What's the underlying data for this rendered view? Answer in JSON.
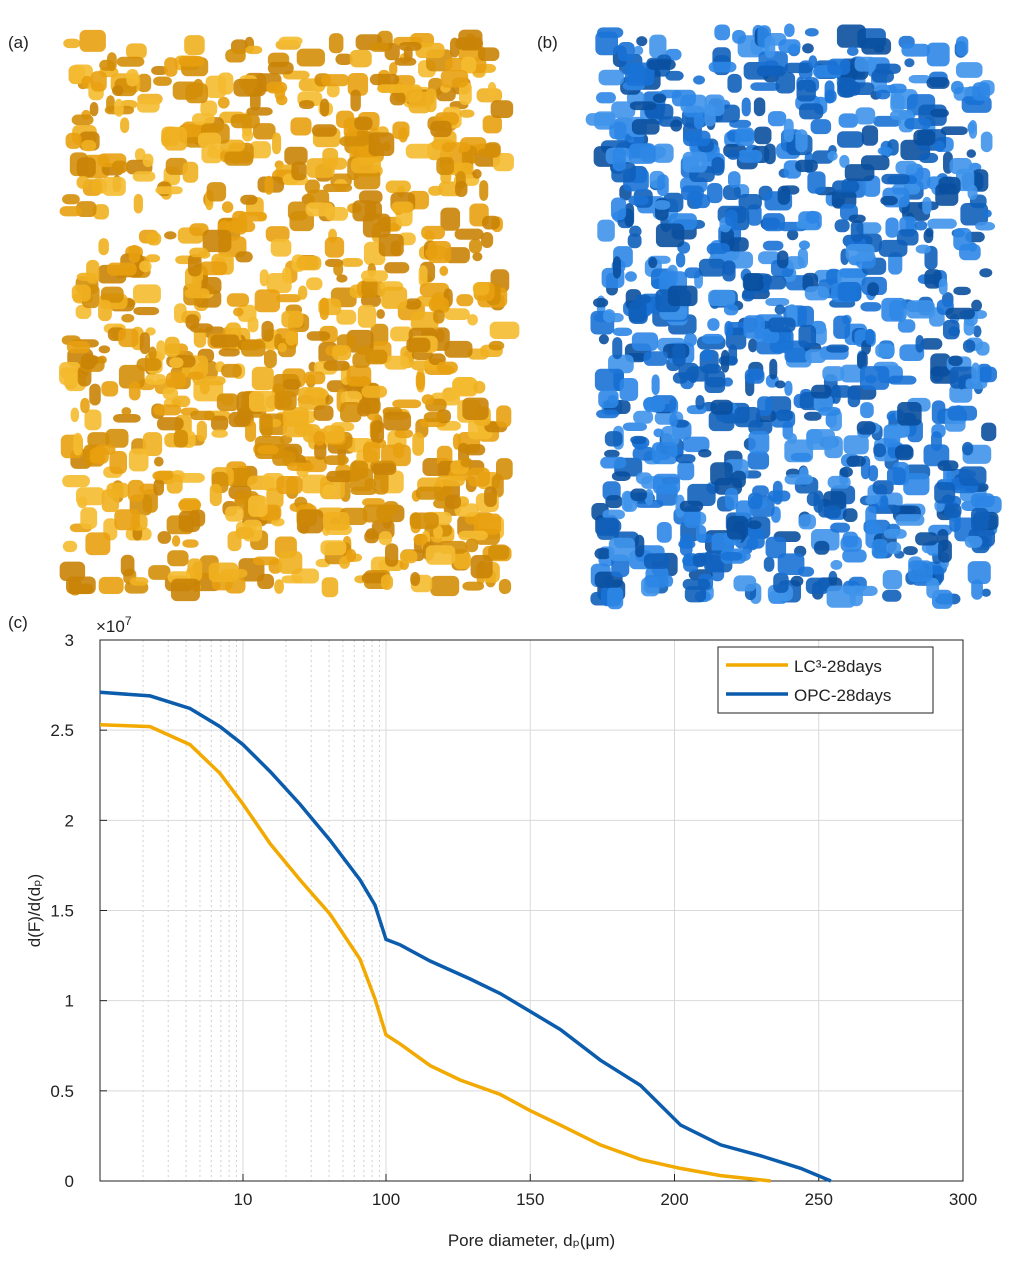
{
  "panel_labels": [
    "(a)",
    "(b)",
    "(c)"
  ],
  "chart_data": {
    "type": "line",
    "xlabel": "Pore diameter, dₚ(μm)",
    "ylabel": "d(F)/d(dₚ)",
    "y_scale_label": {
      "base": "×10",
      "exponent": "7"
    },
    "xscale": {
      "type": "log",
      "until": 100,
      "then": "linear"
    },
    "xlim": [
      1,
      300
    ],
    "xticks": [
      10,
      100,
      150,
      200,
      250,
      300
    ],
    "ylim": [
      0,
      3
    ],
    "yticks": [
      0,
      0.5,
      1,
      1.5,
      2,
      2.5,
      3
    ],
    "grid": true,
    "minor_grid": true,
    "legend": "upper right",
    "series": [
      {
        "name": "LC³-28days",
        "color": "#f2a900",
        "x": [
          1,
          2.24,
          4.26,
          6.9,
          10,
          15.5,
          25,
          40.6,
          65.8,
          83.8,
          100,
          104.9,
          115.3,
          125.7,
          139.6,
          150,
          160.4,
          174.3,
          188.2,
          202.1,
          216,
          229.9,
          233.3
        ],
        "values": [
          2.53,
          2.52,
          2.42,
          2.26,
          2.09,
          1.87,
          1.67,
          1.48,
          1.23,
          1.01,
          0.81,
          0.76,
          0.64,
          0.56,
          0.48,
          0.39,
          0.31,
          0.2,
          0.12,
          0.07,
          0.03,
          0.006,
          0
        ]
      },
      {
        "name": "OPC-28days",
        "color": "#0b5cad",
        "x": [
          1,
          2.24,
          4.26,
          6.9,
          10,
          15.5,
          25,
          40.6,
          65.8,
          83.8,
          100,
          104.9,
          115.3,
          129.2,
          139.6,
          150,
          160.4,
          174.3,
          188.2,
          202.1,
          216,
          229.9,
          243.8,
          254.2
        ],
        "values": [
          2.71,
          2.69,
          2.62,
          2.52,
          2.42,
          2.27,
          2.09,
          1.89,
          1.67,
          1.53,
          1.34,
          1.31,
          1.22,
          1.12,
          1.04,
          0.94,
          0.84,
          0.67,
          0.53,
          0.31,
          0.2,
          0.14,
          0.07,
          0
        ]
      }
    ]
  }
}
